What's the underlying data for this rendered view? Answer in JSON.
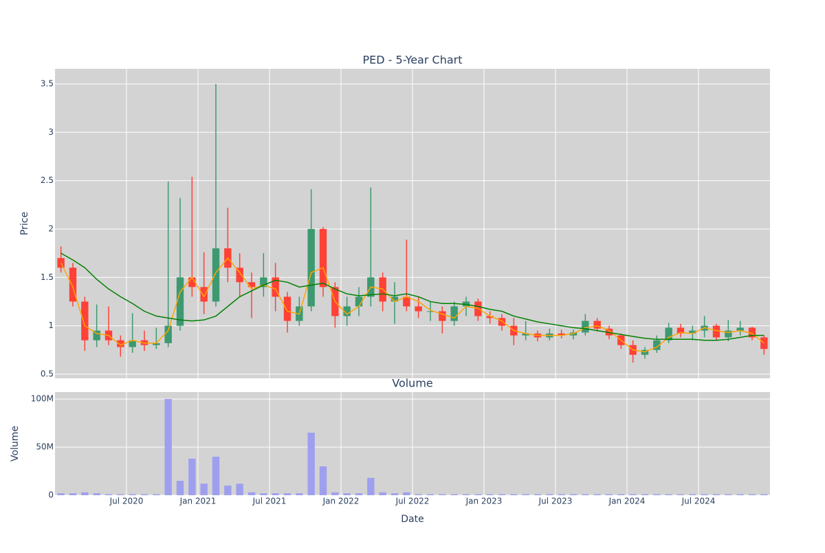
{
  "chart_data": [
    {
      "type": "candlestick",
      "title": "PED - 5-Year Chart",
      "y_label": "Price",
      "x": [
        "2020-01",
        "2020-02",
        "2020-03",
        "2020-04",
        "2020-05",
        "2020-06",
        "2020-07",
        "2020-08",
        "2020-09",
        "2020-10",
        "2020-11",
        "2020-12",
        "2021-01",
        "2021-02",
        "2021-03",
        "2021-04",
        "2021-05",
        "2021-06",
        "2021-07",
        "2021-08",
        "2021-09",
        "2021-10",
        "2021-11",
        "2021-12",
        "2022-01",
        "2022-02",
        "2022-03",
        "2022-04",
        "2022-05",
        "2022-06",
        "2022-07",
        "2022-08",
        "2022-09",
        "2022-10",
        "2022-11",
        "2022-12",
        "2023-01",
        "2023-02",
        "2023-03",
        "2023-04",
        "2023-05",
        "2023-06",
        "2023-07",
        "2023-08",
        "2023-09",
        "2023-10",
        "2023-11",
        "2023-12",
        "2024-01",
        "2024-02",
        "2024-03",
        "2024-04",
        "2024-05",
        "2024-06",
        "2024-07",
        "2024-08",
        "2024-09",
        "2024-10",
        "2024-11",
        "2024-12"
      ],
      "open": [
        1.7,
        1.6,
        1.25,
        0.85,
        0.95,
        0.85,
        0.78,
        0.85,
        0.8,
        0.82,
        1.0,
        1.5,
        1.4,
        1.25,
        1.8,
        1.6,
        1.45,
        1.4,
        1.5,
        1.3,
        1.05,
        1.2,
        2.0,
        1.4,
        1.1,
        1.2,
        1.3,
        1.5,
        1.25,
        1.3,
        1.2,
        1.15,
        1.15,
        1.05,
        1.2,
        1.25,
        1.1,
        1.08,
        1.0,
        0.9,
        0.92,
        0.88,
        0.92,
        0.9,
        0.93,
        1.05,
        0.97,
        0.9,
        0.8,
        0.7,
        0.75,
        0.85,
        0.98,
        0.92,
        0.95,
        1.0,
        0.88,
        0.95,
        0.98,
        0.88
      ],
      "high": [
        1.82,
        1.65,
        1.3,
        1.22,
        1.2,
        0.9,
        1.13,
        0.95,
        0.98,
        2.49,
        2.32,
        2.54,
        1.76,
        3.5,
        2.22,
        1.75,
        1.55,
        1.75,
        1.65,
        1.35,
        1.3,
        2.41,
        2.02,
        1.45,
        1.3,
        1.4,
        2.43,
        1.55,
        1.45,
        1.89,
        1.3,
        1.25,
        1.2,
        1.25,
        1.3,
        1.28,
        1.15,
        1.12,
        1.08,
        1.05,
        0.95,
        0.97,
        0.96,
        0.96,
        1.12,
        1.08,
        1.0,
        0.92,
        0.85,
        0.78,
        0.9,
        1.03,
        1.02,
        1.0,
        1.1,
        1.02,
        1.06,
        1.05,
        0.99,
        0.9
      ],
      "low": [
        1.55,
        1.2,
        0.74,
        0.78,
        0.8,
        0.68,
        0.72,
        0.74,
        0.76,
        0.78,
        0.95,
        1.3,
        1.12,
        1.2,
        1.45,
        1.3,
        1.08,
        1.3,
        1.15,
        0.93,
        1.0,
        1.15,
        1.3,
        0.98,
        1.0,
        1.1,
        1.2,
        1.15,
        1.02,
        1.15,
        1.08,
        1.05,
        0.92,
        1.0,
        1.1,
        1.05,
        1.02,
        0.95,
        0.8,
        0.85,
        0.84,
        0.85,
        0.87,
        0.86,
        0.9,
        0.94,
        0.86,
        0.76,
        0.62,
        0.66,
        0.72,
        0.82,
        0.88,
        0.85,
        0.88,
        0.85,
        0.84,
        0.9,
        0.85,
        0.7
      ],
      "close": [
        1.6,
        1.25,
        0.85,
        0.95,
        0.85,
        0.78,
        0.85,
        0.8,
        0.82,
        1.0,
        1.5,
        1.4,
        1.25,
        1.8,
        1.6,
        1.45,
        1.4,
        1.5,
        1.3,
        1.05,
        1.2,
        2.0,
        1.4,
        1.1,
        1.2,
        1.3,
        1.5,
        1.25,
        1.3,
        1.2,
        1.15,
        1.15,
        1.05,
        1.2,
        1.25,
        1.1,
        1.08,
        1.0,
        0.9,
        0.92,
        0.88,
        0.92,
        0.9,
        0.93,
        1.05,
        0.97,
        0.9,
        0.8,
        0.7,
        0.75,
        0.85,
        0.98,
        0.92,
        0.95,
        1.0,
        0.88,
        0.95,
        0.98,
        0.88,
        0.76
      ],
      "increasing_color": "#3d9970",
      "decreasing_color": "#ff4136",
      "lines": [
        {
          "color": "orange",
          "values": [
            1.65,
            1.4,
            1.0,
            0.92,
            0.9,
            0.8,
            0.85,
            0.82,
            0.82,
            0.95,
            1.35,
            1.5,
            1.3,
            1.55,
            1.7,
            1.55,
            1.38,
            1.42,
            1.38,
            1.15,
            1.12,
            1.55,
            1.6,
            1.25,
            1.12,
            1.2,
            1.4,
            1.38,
            1.25,
            1.3,
            1.25,
            1.16,
            1.12,
            1.08,
            1.2,
            1.18,
            1.1,
            1.05,
            0.95,
            0.92,
            0.9,
            0.9,
            0.9,
            0.92,
            0.98,
            1.0,
            0.95,
            0.85,
            0.75,
            0.73,
            0.78,
            0.88,
            0.93,
            0.92,
            0.98,
            0.95,
            0.93,
            0.95,
            0.92,
            0.82
          ]
        },
        {
          "color": "green",
          "values": [
            1.75,
            1.68,
            1.6,
            1.48,
            1.38,
            1.3,
            1.23,
            1.15,
            1.1,
            1.08,
            1.06,
            1.05,
            1.06,
            1.1,
            1.2,
            1.3,
            1.36,
            1.42,
            1.47,
            1.45,
            1.4,
            1.42,
            1.44,
            1.38,
            1.33,
            1.31,
            1.32,
            1.33,
            1.31,
            1.33,
            1.3,
            1.25,
            1.23,
            1.23,
            1.22,
            1.2,
            1.17,
            1.15,
            1.1,
            1.07,
            1.04,
            1.02,
            1.0,
            0.98,
            0.97,
            0.95,
            0.93,
            0.91,
            0.89,
            0.87,
            0.86,
            0.86,
            0.86,
            0.86,
            0.85,
            0.85,
            0.86,
            0.88,
            0.9,
            0.9
          ]
        }
      ],
      "xlim": [
        "2020-01",
        "2025-01"
      ],
      "xticks": [
        "2020-07",
        "2021-01",
        "2021-07",
        "2022-01",
        "2022-07",
        "2023-01",
        "2023-07",
        "2024-01",
        "2024-07"
      ],
      "ylim": [
        0.457,
        3.656
      ],
      "yticks": [
        0.5,
        1,
        1.5,
        2,
        2.5,
        3,
        3.5
      ],
      "grid": true,
      "background": "#d3d3d3"
    },
    {
      "type": "bar",
      "title": "Volume",
      "x_label": "Date",
      "y_label": "Volume",
      "color": "#9f9fef",
      "x": [
        "2020-01",
        "2020-02",
        "2020-03",
        "2020-04",
        "2020-05",
        "2020-06",
        "2020-07",
        "2020-08",
        "2020-09",
        "2020-10",
        "2020-11",
        "2020-12",
        "2021-01",
        "2021-02",
        "2021-03",
        "2021-04",
        "2021-05",
        "2021-06",
        "2021-07",
        "2021-08",
        "2021-09",
        "2021-10",
        "2021-11",
        "2021-12",
        "2022-01",
        "2022-02",
        "2022-03",
        "2022-04",
        "2022-05",
        "2022-06",
        "2022-07",
        "2022-08",
        "2022-09",
        "2022-10",
        "2022-11",
        "2022-12",
        "2023-01",
        "2023-02",
        "2023-03",
        "2023-04",
        "2023-05",
        "2023-06",
        "2023-07",
        "2023-08",
        "2023-09",
        "2023-10",
        "2023-11",
        "2023-12",
        "2024-01",
        "2024-02",
        "2024-03",
        "2024-04",
        "2024-05",
        "2024-06",
        "2024-07",
        "2024-08",
        "2024-09",
        "2024-10",
        "2024-11",
        "2024-12"
      ],
      "values": [
        2000000,
        2000000,
        3000000,
        2000000,
        1000000,
        1000000,
        1000000,
        1000000,
        1000000,
        100000000,
        15000000,
        38000000,
        12000000,
        40000000,
        10000000,
        12000000,
        3000000,
        2000000,
        2000000,
        2000000,
        2000000,
        65000000,
        30000000,
        3000000,
        2000000,
        2000000,
        18000000,
        3000000,
        2000000,
        3000000,
        1000000,
        1000000,
        1000000,
        1000000,
        1000000,
        1000000,
        1000000,
        1000000,
        1000000,
        1000000,
        1000000,
        1000000,
        1000000,
        1000000,
        1000000,
        1000000,
        1000000,
        1000000,
        1000000,
        1000000,
        1000000,
        1000000,
        1000000,
        1000000,
        1000000,
        1000000,
        1000000,
        1000000,
        1000000,
        1000000
      ],
      "xlim": [
        "2020-01",
        "2025-01"
      ],
      "xticks": [
        {
          "value": "2020-07",
          "label": "Jul 2020"
        },
        {
          "value": "2021-01",
          "label": "Jan 2021"
        },
        {
          "value": "2021-07",
          "label": "Jul 2021"
        },
        {
          "value": "2022-01",
          "label": "Jan 2022"
        },
        {
          "value": "2022-07",
          "label": "Jul 2022"
        },
        {
          "value": "2023-01",
          "label": "Jan 2023"
        },
        {
          "value": "2023-07",
          "label": "Jul 2023"
        },
        {
          "value": "2024-01",
          "label": "Jan 2024"
        },
        {
          "value": "2024-07",
          "label": "Jul 2024"
        }
      ],
      "ylim": [
        0,
        107200000
      ],
      "yticks": [
        0,
        {
          "value": 50000000,
          "label": "50M"
        },
        {
          "value": 100000000,
          "label": "100M"
        }
      ],
      "grid": true,
      "background": "#d3d3d3"
    }
  ]
}
